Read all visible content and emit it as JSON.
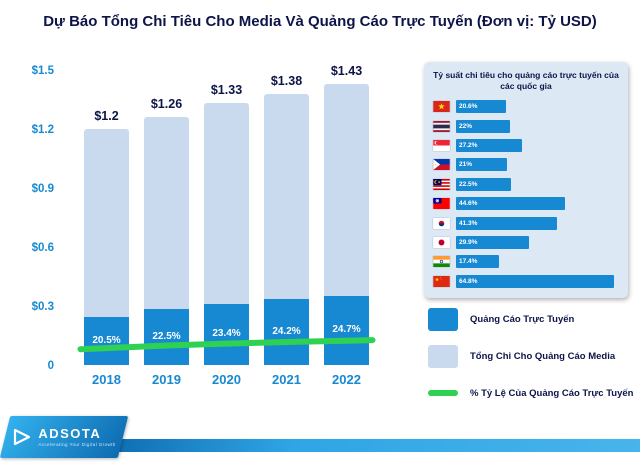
{
  "title": "Dự Báo Tổng Chi Tiêu Cho Media Và Quảng Cáo Trực Tuyến (Đơn vị: Tỷ USD)",
  "colors": {
    "online_ads": "#1789d2",
    "total_media": "#c9daee",
    "percent_line": "#2fd152",
    "heading_text": "#0d1448",
    "axis_text": "#1789d2",
    "panel_bg": "#dde8f5"
  },
  "chart_data": {
    "type": "bar",
    "title": "Dự Báo Tổng Chi Tiêu Cho Media Và Quảng Cáo Trực Tuyến (Đơn vị: Tỷ USD)",
    "categories": [
      "2018",
      "2019",
      "2020",
      "2021",
      "2022"
    ],
    "series": [
      {
        "name": "Tổng Chi Cho Quảng Cáo Media (Tỷ USD)",
        "values": [
          1.2,
          1.26,
          1.33,
          1.38,
          1.43
        ]
      },
      {
        "name": "% Tỷ Lệ Của Quảng Cáo Trực Tuyến",
        "values": [
          20.5,
          22.5,
          23.4,
          24.2,
          24.7
        ]
      }
    ],
    "total_labels": [
      "$1.2",
      "$1.26",
      "$1.33",
      "$1.38",
      "$1.43"
    ],
    "percent_labels": [
      "20.5%",
      "22.5%",
      "23.4%",
      "24.2%",
      "24.7%"
    ],
    "xlabel": "",
    "ylabel": "",
    "ylim": [
      0,
      1.5
    ],
    "yticks": [
      "0",
      "$0.3",
      "$0.6",
      "$0.9",
      "$1.2",
      "$1.5"
    ],
    "grid": false,
    "legend_position": "right"
  },
  "side_panel": {
    "title": "Tỷ suất chi tiêu cho quảng cáo trực tuyến của các quốc gia",
    "max_value": 68,
    "countries": [
      {
        "flag": "vietnam",
        "label": "20.6%",
        "value": 20.6
      },
      {
        "flag": "thailand",
        "label": "22%",
        "value": 22
      },
      {
        "flag": "singapore",
        "label": "27.2%",
        "value": 27.2
      },
      {
        "flag": "philippines",
        "label": "21%",
        "value": 21
      },
      {
        "flag": "malaysia",
        "label": "22.5%",
        "value": 22.5
      },
      {
        "flag": "taiwan",
        "label": "44.6%",
        "value": 44.6
      },
      {
        "flag": "south-korea",
        "label": "41.3%",
        "value": 41.3
      },
      {
        "flag": "japan",
        "label": "29.9%",
        "value": 29.9
      },
      {
        "flag": "india",
        "label": "17.4%",
        "value": 17.4
      },
      {
        "flag": "china",
        "label": "64.8%",
        "value": 64.8
      }
    ]
  },
  "legend": [
    {
      "type": "square-dark",
      "label": "Quảng Cáo Trực Tuyến"
    },
    {
      "type": "square-light",
      "label": "Tổng Chi Cho Quảng Cáo Media"
    },
    {
      "type": "line",
      "label": "% Tỷ Lệ Của Quảng Cáo Trực Tuyến"
    }
  ],
  "footer": {
    "logo_text": "ADSOTA",
    "tagline": "Accelerating Your Digital Growth"
  }
}
